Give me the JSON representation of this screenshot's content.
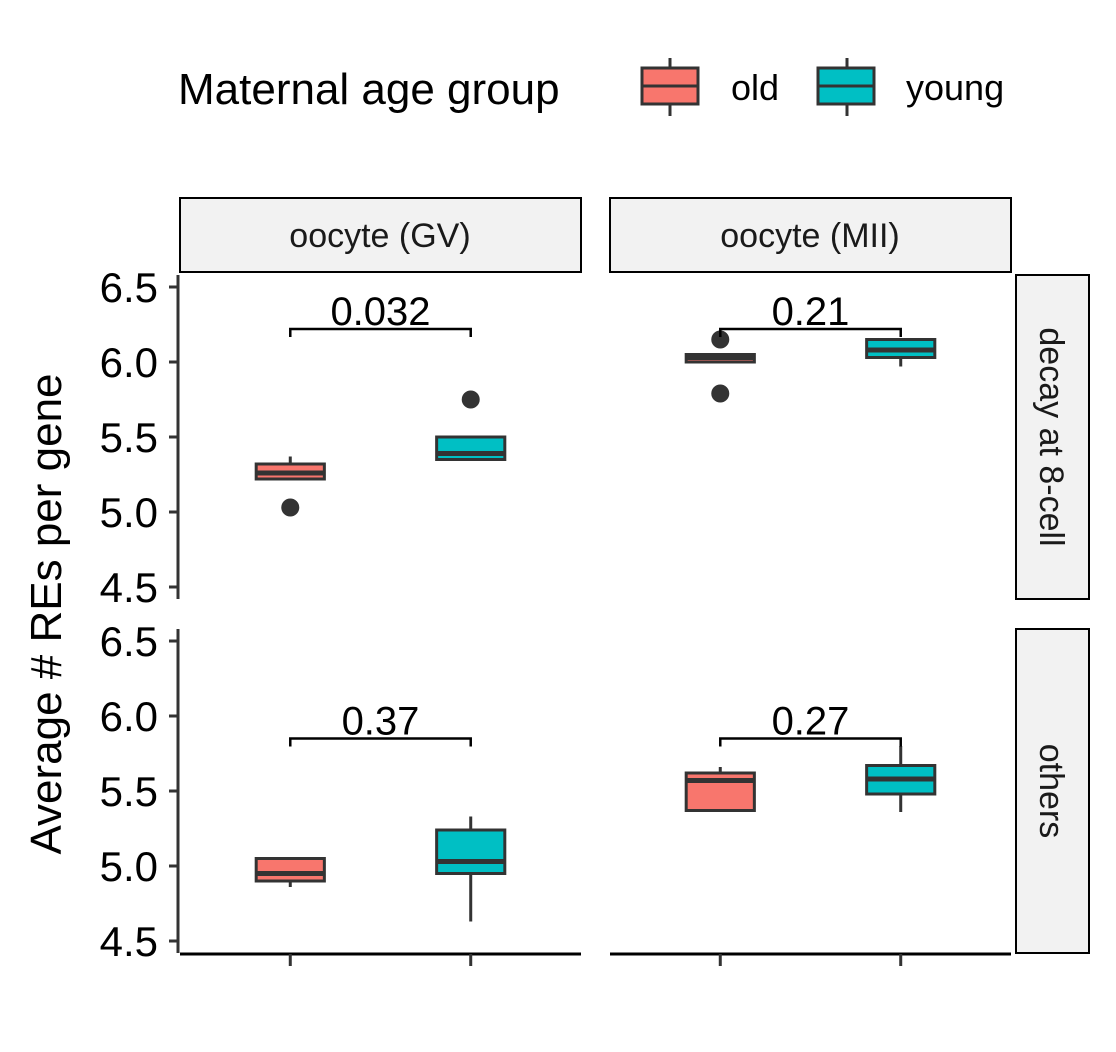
{
  "chart_data": {
    "type": "box",
    "ylabel": "Average # REs per gene",
    "ylim": [
      4.42,
      6.58
    ],
    "yticks": [
      "4.5",
      "5.0",
      "5.5",
      "6.0",
      "6.5"
    ],
    "ytick_values": [
      4.5,
      5.0,
      5.5,
      6.0,
      6.5
    ],
    "legend": {
      "title": "Maternal age group",
      "placement": "top",
      "entries": [
        {
          "name": "old",
          "color": "#F8766D"
        },
        {
          "name": "young",
          "color": "#00BFC4"
        }
      ]
    },
    "column_facets": [
      "oocyte (GV)",
      "oocyte (MII)"
    ],
    "row_facets": [
      "decay at 8-cell",
      "others"
    ],
    "groups": [
      "old",
      "young"
    ],
    "panels": [
      {
        "column": "oocyte (GV)",
        "row": "decay at 8-cell",
        "p_value": "0.032",
        "boxes": [
          {
            "group": "old",
            "whisker_low": 5.22,
            "q1": 5.22,
            "median": 5.26,
            "q3": 5.32,
            "whisker_high": 5.37,
            "outliers": [
              5.03
            ]
          },
          {
            "group": "young",
            "whisker_low": 5.35,
            "q1": 5.35,
            "median": 5.39,
            "q3": 5.5,
            "whisker_high": 5.5,
            "outliers": [
              5.75
            ]
          }
        ]
      },
      {
        "column": "oocyte (MII)",
        "row": "decay at 8-cell",
        "p_value": "0.21",
        "boxes": [
          {
            "group": "old",
            "whisker_low": 6.0,
            "q1": 6.0,
            "median": 6.03,
            "q3": 6.05,
            "whisker_high": 6.05,
            "outliers": [
              5.79,
              6.15
            ]
          },
          {
            "group": "young",
            "whisker_low": 5.97,
            "q1": 6.03,
            "median": 6.08,
            "q3": 6.15,
            "whisker_high": 6.15,
            "outliers": []
          }
        ]
      },
      {
        "column": "oocyte (GV)",
        "row": "others",
        "p_value": "0.37",
        "boxes": [
          {
            "group": "old",
            "whisker_low": 4.86,
            "q1": 4.9,
            "median": 4.95,
            "q3": 5.05,
            "whisker_high": 5.05,
            "outliers": []
          },
          {
            "group": "young",
            "whisker_low": 4.63,
            "q1": 4.95,
            "median": 5.03,
            "q3": 5.24,
            "whisker_high": 5.33,
            "outliers": []
          }
        ]
      },
      {
        "column": "oocyte (MII)",
        "row": "others",
        "p_value": "0.27",
        "boxes": [
          {
            "group": "old",
            "whisker_low": 5.36,
            "q1": 5.37,
            "median": 5.57,
            "q3": 5.62,
            "whisker_high": 5.66,
            "outliers": []
          },
          {
            "group": "young",
            "whisker_low": 5.36,
            "q1": 5.48,
            "median": 5.58,
            "q3": 5.67,
            "whisker_high": 5.8,
            "outliers": []
          }
        ]
      }
    ],
    "significance_bracket_y": {
      "decay at 8-cell": 6.22,
      "others": 5.85
    },
    "grid": false
  }
}
